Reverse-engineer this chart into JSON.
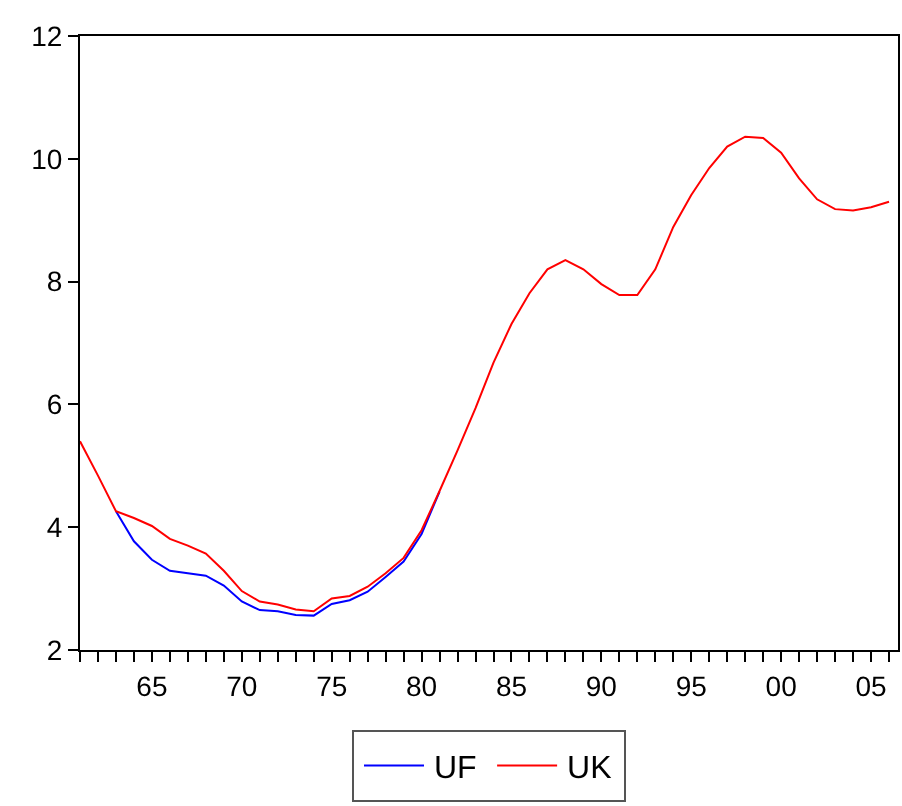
{
  "chart_data": {
    "type": "line",
    "x": [
      1961,
      1962,
      1963,
      1964,
      1965,
      1966,
      1967,
      1968,
      1969,
      1970,
      1971,
      1972,
      1973,
      1974,
      1975,
      1976,
      1977,
      1978,
      1979,
      1980,
      1981,
      1982,
      1983,
      1984,
      1985,
      1986,
      1987,
      1988,
      1989,
      1990,
      1991,
      1992,
      1993,
      1994,
      1995,
      1996,
      1997,
      1998,
      1999,
      2000,
      2001,
      2002,
      2003,
      2004,
      2005,
      2006
    ],
    "series": [
      {
        "name": "UF",
        "color": "#0000ff",
        "values": [
          null,
          null,
          4.26,
          3.77,
          3.47,
          3.29,
          3.25,
          3.21,
          3.05,
          2.79,
          2.65,
          2.63,
          2.57,
          2.56,
          2.75,
          2.81,
          2.95,
          3.19,
          3.44,
          3.89,
          4.58,
          null,
          null,
          null,
          null,
          null,
          null,
          null,
          null,
          null,
          null,
          null,
          null,
          null,
          null,
          null,
          null,
          null,
          null,
          null,
          null,
          null,
          null,
          null,
          null,
          null
        ]
      },
      {
        "name": "UK",
        "color": "#ff0000",
        "values": [
          5.4,
          4.84,
          4.26,
          4.15,
          4.02,
          3.81,
          3.7,
          3.57,
          3.29,
          2.96,
          2.79,
          2.74,
          2.66,
          2.63,
          2.84,
          2.88,
          3.03,
          3.25,
          3.5,
          3.95,
          4.59,
          5.25,
          5.94,
          6.68,
          7.31,
          7.81,
          8.2,
          8.35,
          8.2,
          7.96,
          7.78,
          7.78,
          8.2,
          8.89,
          9.41,
          9.85,
          10.2,
          10.36,
          10.34,
          10.1,
          9.68,
          9.34,
          9.18,
          9.16,
          9.21,
          9.3
        ]
      }
    ],
    "xlim": [
      1961,
      2006.5
    ],
    "xticks": [
      {
        "value": 1961,
        "label": null
      },
      {
        "value": 1962,
        "label": null
      },
      {
        "value": 1963,
        "label": null
      },
      {
        "value": 1964,
        "label": null
      },
      {
        "value": 1965,
        "label": "65"
      },
      {
        "value": 1966,
        "label": null
      },
      {
        "value": 1967,
        "label": null
      },
      {
        "value": 1968,
        "label": null
      },
      {
        "value": 1969,
        "label": null
      },
      {
        "value": 1970,
        "label": "70"
      },
      {
        "value": 1971,
        "label": null
      },
      {
        "value": 1972,
        "label": null
      },
      {
        "value": 1973,
        "label": null
      },
      {
        "value": 1974,
        "label": null
      },
      {
        "value": 1975,
        "label": "75"
      },
      {
        "value": 1976,
        "label": null
      },
      {
        "value": 1977,
        "label": null
      },
      {
        "value": 1978,
        "label": null
      },
      {
        "value": 1979,
        "label": null
      },
      {
        "value": 1980,
        "label": "80"
      },
      {
        "value": 1981,
        "label": null
      },
      {
        "value": 1982,
        "label": null
      },
      {
        "value": 1983,
        "label": null
      },
      {
        "value": 1984,
        "label": null
      },
      {
        "value": 1985,
        "label": "85"
      },
      {
        "value": 1986,
        "label": null
      },
      {
        "value": 1987,
        "label": null
      },
      {
        "value": 1988,
        "label": null
      },
      {
        "value": 1989,
        "label": null
      },
      {
        "value": 1990,
        "label": "90"
      },
      {
        "value": 1991,
        "label": null
      },
      {
        "value": 1992,
        "label": null
      },
      {
        "value": 1993,
        "label": null
      },
      {
        "value": 1994,
        "label": null
      },
      {
        "value": 1995,
        "label": "95"
      },
      {
        "value": 1996,
        "label": null
      },
      {
        "value": 1997,
        "label": null
      },
      {
        "value": 1998,
        "label": null
      },
      {
        "value": 1999,
        "label": null
      },
      {
        "value": 2000,
        "label": "00"
      },
      {
        "value": 2001,
        "label": null
      },
      {
        "value": 2002,
        "label": null
      },
      {
        "value": 2003,
        "label": null
      },
      {
        "value": 2004,
        "label": null
      },
      {
        "value": 2005,
        "label": "05"
      },
      {
        "value": 2006,
        "label": null
      }
    ],
    "ylim": [
      2,
      12
    ],
    "yticks": [
      2,
      4,
      6,
      8,
      10,
      12
    ],
    "legend": "bottom",
    "marker": "none",
    "line_style": "solid"
  }
}
